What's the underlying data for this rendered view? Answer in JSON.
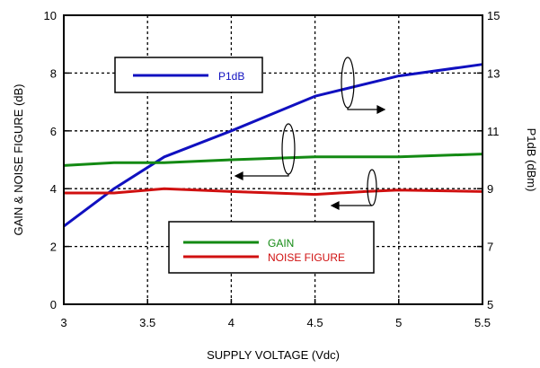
{
  "chart_data": {
    "type": "line",
    "xlabel": "SUPPLY VOLTAGE (Vdc)",
    "ylabel_left": "GAIN  & NOISE FIGURE (dB)",
    "ylabel_right": "P1dB (dBm)",
    "xlim": [
      3,
      5.5
    ],
    "ylim_left": [
      0,
      10
    ],
    "ylim_right": [
      5,
      15
    ],
    "x_ticks": [
      "3",
      "3.5",
      "4",
      "4.5",
      "5",
      "5.5"
    ],
    "y_ticks_left": [
      "0",
      "2",
      "4",
      "6",
      "8",
      "10"
    ],
    "y_ticks_right": [
      "5",
      "7",
      "9",
      "11",
      "13",
      "15"
    ],
    "grid": "dotted",
    "series": [
      {
        "name": "P1dB",
        "axis": "right",
        "color": "#1010c0",
        "x": [
          3.0,
          3.3,
          3.6,
          4.0,
          4.5,
          5.0,
          5.5
        ],
        "y": [
          7.7,
          9.0,
          10.1,
          11.0,
          12.2,
          12.9,
          13.3
        ]
      },
      {
        "name": "GAIN",
        "axis": "left",
        "color": "#138a13",
        "x": [
          3.0,
          3.3,
          3.6,
          4.0,
          4.5,
          5.0,
          5.5
        ],
        "y": [
          4.8,
          4.9,
          4.9,
          5.0,
          5.1,
          5.1,
          5.2
        ]
      },
      {
        "name": "NOISE FIGURE",
        "axis": "left",
        "color": "#d01010",
        "x": [
          3.0,
          3.3,
          3.6,
          4.0,
          4.5,
          4.8,
          5.0,
          5.5
        ],
        "y": [
          3.85,
          3.85,
          4.0,
          3.9,
          3.8,
          3.9,
          3.95,
          3.9
        ]
      }
    ],
    "legend_upper": [
      "P1dB"
    ],
    "legend_lower": [
      "GAIN",
      "NOISE FIGURE"
    ]
  }
}
